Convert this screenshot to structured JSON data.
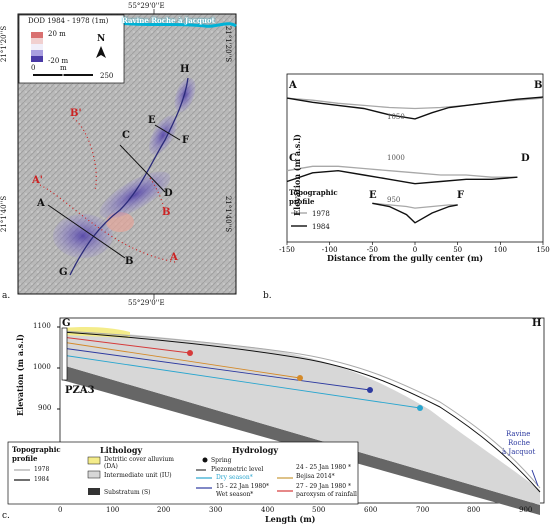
{
  "figure": {
    "panel_labels": {
      "a": "a.",
      "b": "b.",
      "c": "c."
    }
  },
  "map": {
    "coord_top": "55°29'0''E",
    "coord_bottom": "55°29'0''E",
    "left_top": "21°1'20''S",
    "left_bottom": "21°1'40''S",
    "right_top": "21°1'20''S",
    "right_bottom": "21°1'40''S",
    "river_label": "Ravine Roche à Jacquot",
    "legend": {
      "title": "DOD 1984 - 1978 (1m)",
      "max": "20 m",
      "min": "-20 m",
      "scale_zero": "0",
      "scale_unit": "m",
      "scale_end": "250",
      "north": "N",
      "colors": {
        "positive": "#d97070",
        "negative": "#4a3aa6"
      }
    },
    "labels": {
      "A": "A",
      "A_prime": "A'",
      "B": "B",
      "B_prime": "B'",
      "C": "C",
      "D": "D",
      "E": "E",
      "F": "F",
      "G": "G",
      "H": "H"
    }
  },
  "profiles": {
    "ylabel": "Elevation (m a.s.l)",
    "xlabel": "Distance from the gully center (m)",
    "legend_title": "Topographic\nprofile",
    "legend_1978": "1978",
    "legend_1984": "1984",
    "sections": [
      {
        "left": "A",
        "right": "B",
        "elev": "1050"
      },
      {
        "left": "C",
        "right": "D",
        "elev": "1000"
      },
      {
        "left": "E",
        "right": "F",
        "elev": "950"
      }
    ],
    "colors": {
      "y1978": "#a8a8a8",
      "y1984": "#111111"
    }
  },
  "chart_data": {
    "type": "line",
    "title": "",
    "xlabel": "Distance from the gully center (m)",
    "ylabel": "Elevation (m a.s.l)",
    "xlim": [
      -150,
      150
    ],
    "x_ticks": [
      -150,
      -100,
      -50,
      0,
      50,
      100,
      150
    ],
    "series": [
      {
        "name": "1978",
        "profile": "A-B",
        "x": [
          -150,
          -120,
          -90,
          -60,
          -30,
          0,
          30,
          60,
          90,
          120,
          150
        ],
        "y": [
          1062,
          1060,
          1057,
          1055,
          1053,
          1052,
          1053,
          1055,
          1058,
          1060,
          1062
        ]
      },
      {
        "name": "1984",
        "profile": "A-B",
        "x": [
          -150,
          -120,
          -90,
          -60,
          -30,
          0,
          20,
          40,
          60,
          90,
          120,
          150
        ],
        "y": [
          1062,
          1058,
          1055,
          1052,
          1046,
          1042,
          1048,
          1053,
          1055,
          1058,
          1061,
          1063
        ]
      },
      {
        "name": "1978",
        "profile": "C-D",
        "x": [
          -150,
          -120,
          -90,
          -60,
          -30,
          0,
          30,
          60,
          90,
          120
        ],
        "y": [
          1000,
          1002,
          1002,
          1001,
          1000,
          999,
          998,
          998,
          997,
          997
        ]
      },
      {
        "name": "1984",
        "profile": "C-D",
        "x": [
          -150,
          -120,
          -90,
          -60,
          -30,
          0,
          30,
          60,
          90,
          120
        ],
        "y": [
          995,
          999,
          1000,
          998,
          996,
          994,
          995,
          996,
          996,
          997
        ]
      },
      {
        "name": "1978",
        "profile": "E-F",
        "x": [
          -50,
          -30,
          -10,
          0,
          20,
          40,
          50
        ],
        "y": [
          954,
          953,
          952,
          951,
          952,
          953,
          953
        ]
      },
      {
        "name": "1984",
        "profile": "E-F",
        "x": [
          -50,
          -30,
          -10,
          0,
          20,
          40,
          50
        ],
        "y": [
          954,
          952,
          947,
          942,
          948,
          952,
          953
        ]
      }
    ]
  },
  "longitudinal": {
    "ylabel": "Elevation (m a.s.l)",
    "xlabel": "Length (m)",
    "y_ticks": [
      "1100",
      "1000",
      "900"
    ],
    "x_ticks": [
      "0",
      "100",
      "200",
      "300",
      "400",
      "500",
      "600",
      "700",
      "800",
      "900"
    ],
    "start_label": "G",
    "end_label": "H",
    "pza": "PZA3",
    "ravine": [
      "Ravine",
      "Roche",
      "à Jacquot"
    ],
    "legend": {
      "topo_title": "Topographic\nprofile",
      "y1978": "1978",
      "y1984": "1984",
      "lith_title": "Lithology",
      "lith_da": "Detritic cover alluvium (DA)",
      "lith_iu": "Intermediate unit (IU)",
      "lith_s": "Substratum (S)",
      "hydro_title": "Hydrology",
      "spring": "Spring",
      "piezo": "Piezometric level",
      "dry": "Dry season*",
      "jan15": "15 - 22 Jan 1980*",
      "wet": "Wet season*",
      "jan24": "24 - 25 Jan 1980 *",
      "bejisa": "Bejisa 2014*",
      "jan27": "27 - 29 Jan 1980 *",
      "paroxysm": "paroxysm of rainfall"
    },
    "colors": {
      "detritic": "#f4ec8a",
      "intermediate": "#d7d7d7",
      "substratum": "#666666",
      "dry": "#2aa6cf",
      "jan15": "#2d3aa0",
      "jan24": "#d48a2a",
      "bejisa": "#c79a3a",
      "jan27": "#d63a3a"
    }
  }
}
